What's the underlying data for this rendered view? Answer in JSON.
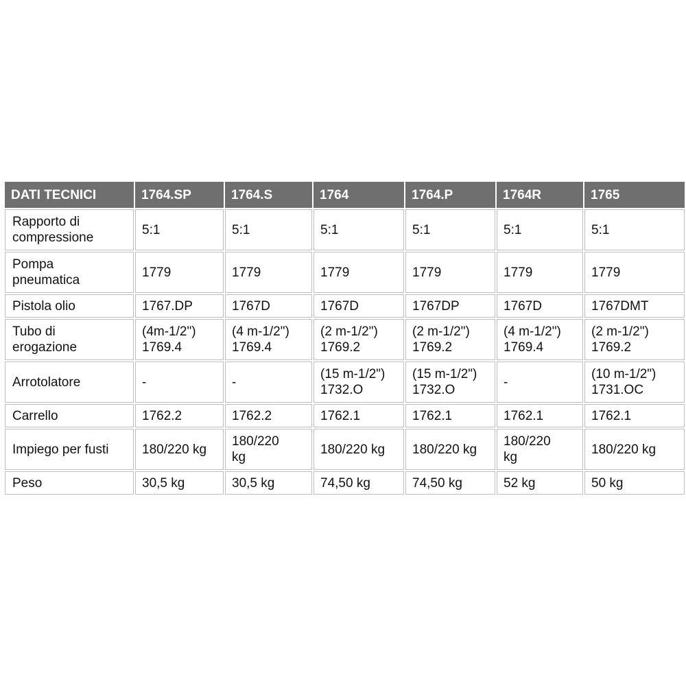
{
  "table": {
    "headers": [
      "DATI TECNICI",
      "1764.SP",
      "1764.S",
      "1764",
      "1764.P",
      "1764R",
      "1765"
    ],
    "rows": [
      {
        "label": [
          "Rapporto di",
          "compressione"
        ],
        "cells": [
          [
            "5:1"
          ],
          [
            "5:1"
          ],
          [
            "5:1"
          ],
          [
            "5:1"
          ],
          [
            "5:1"
          ],
          [
            "5:1"
          ]
        ]
      },
      {
        "label": [
          "Pompa",
          "pneumatica"
        ],
        "cells": [
          [
            "1779"
          ],
          [
            "1779"
          ],
          [
            "1779"
          ],
          [
            "1779"
          ],
          [
            "1779"
          ],
          [
            "1779"
          ]
        ]
      },
      {
        "label": [
          "Pistola olio"
        ],
        "cells": [
          [
            "1767.DP"
          ],
          [
            "1767D"
          ],
          [
            "1767D"
          ],
          [
            "1767DP"
          ],
          [
            "1767D"
          ],
          [
            "1767DMT"
          ]
        ]
      },
      {
        "label": [
          "Tubo di",
          "erogazione"
        ],
        "cells": [
          [
            "(4m-1/2\")",
            "1769.4"
          ],
          [
            "(4 m-1/2\")",
            "1769.4"
          ],
          [
            "(2 m-1/2\")",
            "1769.2"
          ],
          [
            "(2 m-1/2\")",
            "1769.2"
          ],
          [
            "(4 m-1/2\")",
            "1769.4"
          ],
          [
            "(2 m-1/2\")",
            "1769.2"
          ]
        ]
      },
      {
        "label": [
          "Arrotolatore"
        ],
        "cells": [
          [
            "-"
          ],
          [
            "-"
          ],
          [
            "(15 m-1/2\")",
            "1732.O"
          ],
          [
            "(15 m-1/2\")",
            "1732.O"
          ],
          [
            "-"
          ],
          [
            "(10 m-1/2\")",
            "1731.OC"
          ]
        ]
      },
      {
        "label": [
          "Carrello"
        ],
        "cells": [
          [
            "1762.2"
          ],
          [
            "1762.2"
          ],
          [
            "1762.1"
          ],
          [
            "1762.1"
          ],
          [
            "1762.1"
          ],
          [
            "1762.1"
          ]
        ]
      },
      {
        "label": [
          "Impiego per fusti"
        ],
        "cells": [
          [
            "180/220 kg"
          ],
          [
            "180/220",
            "kg"
          ],
          [
            "180/220 kg"
          ],
          [
            "180/220 kg"
          ],
          [
            "180/220",
            "kg"
          ],
          [
            "180/220 kg"
          ]
        ]
      },
      {
        "label": [
          "Peso"
        ],
        "cells": [
          [
            "30,5 kg"
          ],
          [
            "30,5 kg"
          ],
          [
            "74,50 kg"
          ],
          [
            "74,50 kg"
          ],
          [
            "52 kg"
          ],
          [
            "50 kg"
          ]
        ]
      }
    ]
  }
}
